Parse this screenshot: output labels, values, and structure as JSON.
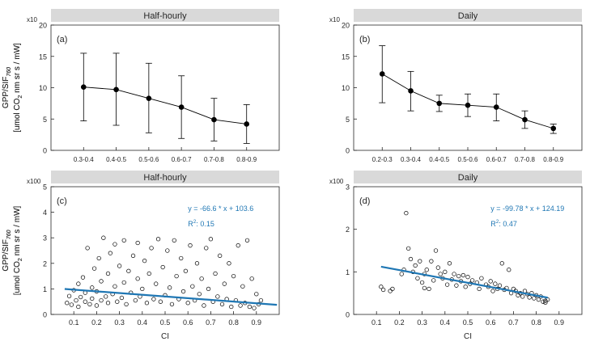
{
  "colors": {
    "strip": "#d9d9d9",
    "fit": "#1f77b4",
    "axis": "#262626",
    "grid_text": "#262626"
  },
  "chart_data": [
    {
      "id": "a",
      "type": "line",
      "strip_title": "Half-hourly",
      "panel_label": "(a)",
      "exponent_label": "x10",
      "ylabel_lines": [
        "GPP/SIF",
        "760",
        "[umol CO",
        "2",
        " nm sr s / mW]"
      ],
      "categories": [
        "0.3-0.4",
        "0.4-0.5",
        "0.5-0.6",
        "0.6-0.7",
        "0.7-0.8",
        "0.8-0.9"
      ],
      "y": [
        10.1,
        9.7,
        8.3,
        6.9,
        4.9,
        4.2
      ],
      "err_low": [
        4.7,
        4.0,
        2.8,
        1.9,
        1.5,
        1.1
      ],
      "err_high": [
        15.5,
        15.5,
        13.9,
        11.9,
        8.3,
        7.3
      ],
      "ylim": [
        0,
        20
      ],
      "yticks": [
        0,
        5,
        10,
        15,
        20
      ]
    },
    {
      "id": "b",
      "type": "line",
      "strip_title": "Daily",
      "panel_label": "(b)",
      "exponent_label": "x10",
      "categories": [
        "0.2-0.3",
        "0.3-0.4",
        "0.4-0.5",
        "0.5-0.6",
        "0.6-0.7",
        "0.7-0.8",
        "0.8-0.9"
      ],
      "y": [
        12.2,
        9.5,
        7.5,
        7.2,
        6.9,
        4.9,
        3.5
      ],
      "err_low": [
        7.6,
        6.3,
        6.2,
        5.4,
        4.7,
        3.5,
        2.7
      ],
      "err_high": [
        16.7,
        12.6,
        8.8,
        9.0,
        9.0,
        6.3,
        4.2
      ],
      "ylim": [
        0,
        20
      ],
      "yticks": [
        0,
        5,
        10,
        15,
        20
      ]
    },
    {
      "id": "c",
      "type": "scatter",
      "strip_title": "Half-hourly",
      "panel_label": "(c)",
      "exponent_label": "x100",
      "xlabel": "CI",
      "equation": "y = -66.6 * x + 103.6",
      "r2_prefix": "R",
      "r2_sup": "2",
      "r2_value": ": 0.15",
      "fit": {
        "slope": -66.6,
        "intercept": 103.6,
        "x_range": [
          0.06,
          0.99
        ]
      },
      "xlim": [
        0,
        1
      ],
      "xticks": [
        0.1,
        0.2,
        0.3,
        0.4,
        0.5,
        0.6,
        0.7,
        0.8,
        0.9
      ],
      "ylim": [
        0,
        5
      ],
      "yticks": [
        0,
        1,
        2,
        3,
        4,
        5
      ],
      "points": [
        [
          0.07,
          0.45
        ],
        [
          0.08,
          0.72
        ],
        [
          0.09,
          0.38
        ],
        [
          0.1,
          0.95
        ],
        [
          0.11,
          0.55
        ],
        [
          0.12,
          1.2
        ],
        [
          0.12,
          0.3
        ],
        [
          0.13,
          0.68
        ],
        [
          0.14,
          1.45
        ],
        [
          0.15,
          0.5
        ],
        [
          0.15,
          0.85
        ],
        [
          0.16,
          2.6
        ],
        [
          0.17,
          0.4
        ],
        [
          0.18,
          1.05
        ],
        [
          0.18,
          0.62
        ],
        [
          0.19,
          1.8
        ],
        [
          0.2,
          0.35
        ],
        [
          0.2,
          0.9
        ],
        [
          0.21,
          2.2
        ],
        [
          0.22,
          0.55
        ],
        [
          0.22,
          1.3
        ],
        [
          0.23,
          3.0
        ],
        [
          0.24,
          0.7
        ],
        [
          0.25,
          1.6
        ],
        [
          0.25,
          0.45
        ],
        [
          0.26,
          2.4
        ],
        [
          0.27,
          0.8
        ],
        [
          0.28,
          1.1
        ],
        [
          0.28,
          2.75
        ],
        [
          0.29,
          0.5
        ],
        [
          0.3,
          1.9
        ],
        [
          0.31,
          0.65
        ],
        [
          0.32,
          2.9
        ],
        [
          0.32,
          1.25
        ],
        [
          0.33,
          0.4
        ],
        [
          0.34,
          1.7
        ],
        [
          0.35,
          0.85
        ],
        [
          0.36,
          2.3
        ],
        [
          0.37,
          0.55
        ],
        [
          0.38,
          1.4
        ],
        [
          0.38,
          2.8
        ],
        [
          0.39,
          0.7
        ],
        [
          0.4,
          1.0
        ],
        [
          0.41,
          2.1
        ],
        [
          0.42,
          0.45
        ],
        [
          0.43,
          1.6
        ],
        [
          0.44,
          2.6
        ],
        [
          0.45,
          0.6
        ],
        [
          0.46,
          1.2
        ],
        [
          0.47,
          2.95
        ],
        [
          0.48,
          0.5
        ],
        [
          0.49,
          1.85
        ],
        [
          0.5,
          0.75
        ],
        [
          0.51,
          2.5
        ],
        [
          0.52,
          1.05
        ],
        [
          0.53,
          0.4
        ],
        [
          0.54,
          2.9
        ],
        [
          0.55,
          1.5
        ],
        [
          0.56,
          0.6
        ],
        [
          0.57,
          2.2
        ],
        [
          0.58,
          0.9
        ],
        [
          0.59,
          1.7
        ],
        [
          0.6,
          0.45
        ],
        [
          0.61,
          2.7
        ],
        [
          0.62,
          1.1
        ],
        [
          0.63,
          0.55
        ],
        [
          0.64,
          2.0
        ],
        [
          0.65,
          0.8
        ],
        [
          0.66,
          1.4
        ],
        [
          0.67,
          0.35
        ],
        [
          0.68,
          2.6
        ],
        [
          0.69,
          1.0
        ],
        [
          0.7,
          2.95
        ],
        [
          0.71,
          0.5
        ],
        [
          0.72,
          1.6
        ],
        [
          0.73,
          0.7
        ],
        [
          0.74,
          2.3
        ],
        [
          0.75,
          0.4
        ],
        [
          0.76,
          1.2
        ],
        [
          0.77,
          0.6
        ],
        [
          0.78,
          2.0
        ],
        [
          0.79,
          0.3
        ],
        [
          0.8,
          1.5
        ],
        [
          0.81,
          0.55
        ],
        [
          0.82,
          2.7
        ],
        [
          0.83,
          0.35
        ],
        [
          0.84,
          1.1
        ],
        [
          0.85,
          0.45
        ],
        [
          0.86,
          2.9
        ],
        [
          0.87,
          0.3
        ],
        [
          0.88,
          1.4
        ],
        [
          0.89,
          0.25
        ],
        [
          0.9,
          0.8
        ],
        [
          0.91,
          0.4
        ],
        [
          0.92,
          0.55
        ]
      ]
    },
    {
      "id": "d",
      "type": "scatter",
      "strip_title": "Daily",
      "panel_label": "(d)",
      "exponent_label": "x100",
      "xlabel": "CI",
      "equation": "y = -99.78 * x + 124.19",
      "r2_prefix": "R",
      "r2_sup": "2",
      "r2_value": ": 0.47",
      "fit": {
        "slope": -99.78,
        "intercept": 124.19,
        "x_range": [
          0.12,
          0.85
        ]
      },
      "xlim": [
        0,
        1
      ],
      "xticks": [
        0.1,
        0.2,
        0.3,
        0.4,
        0.5,
        0.6,
        0.7,
        0.8,
        0.9
      ],
      "ylim": [
        0,
        3
      ],
      "yticks": [
        0,
        1,
        2,
        3
      ],
      "points": [
        [
          0.12,
          0.65
        ],
        [
          0.13,
          0.58
        ],
        [
          0.16,
          0.55
        ],
        [
          0.17,
          0.6
        ],
        [
          0.21,
          0.95
        ],
        [
          0.22,
          1.05
        ],
        [
          0.23,
          2.38
        ],
        [
          0.24,
          1.55
        ],
        [
          0.25,
          1.3
        ],
        [
          0.26,
          1.0
        ],
        [
          0.27,
          1.15
        ],
        [
          0.28,
          0.85
        ],
        [
          0.29,
          1.25
        ],
        [
          0.3,
          0.75
        ],
        [
          0.31,
          0.95
        ],
        [
          0.31,
          0.62
        ],
        [
          0.32,
          1.05
        ],
        [
          0.33,
          0.6
        ],
        [
          0.34,
          1.25
        ],
        [
          0.35,
          0.8
        ],
        [
          0.36,
          1.5
        ],
        [
          0.37,
          1.1
        ],
        [
          0.38,
          0.95
        ],
        [
          0.39,
          0.85
        ],
        [
          0.4,
          1.0
        ],
        [
          0.41,
          0.7
        ],
        [
          0.42,
          1.2
        ],
        [
          0.43,
          0.82
        ],
        [
          0.44,
          0.95
        ],
        [
          0.45,
          0.68
        ],
        [
          0.46,
          0.9
        ],
        [
          0.47,
          0.78
        ],
        [
          0.48,
          0.92
        ],
        [
          0.49,
          0.65
        ],
        [
          0.5,
          0.88
        ],
        [
          0.51,
          0.72
        ],
        [
          0.52,
          0.8
        ],
        [
          0.54,
          0.75
        ],
        [
          0.55,
          0.6
        ],
        [
          0.56,
          0.85
        ],
        [
          0.58,
          0.7
        ],
        [
          0.59,
          0.65
        ],
        [
          0.6,
          0.78
        ],
        [
          0.61,
          0.55
        ],
        [
          0.62,
          0.72
        ],
        [
          0.63,
          0.6
        ],
        [
          0.64,
          0.68
        ],
        [
          0.65,
          1.2
        ],
        [
          0.66,
          0.58
        ],
        [
          0.67,
          0.62
        ],
        [
          0.68,
          1.05
        ],
        [
          0.69,
          0.5
        ],
        [
          0.7,
          0.6
        ],
        [
          0.71,
          0.55
        ],
        [
          0.72,
          0.45
        ],
        [
          0.73,
          0.5
        ],
        [
          0.74,
          0.42
        ],
        [
          0.75,
          0.55
        ],
        [
          0.76,
          0.48
        ],
        [
          0.77,
          0.4
        ],
        [
          0.78,
          0.5
        ],
        [
          0.79,
          0.38
        ],
        [
          0.8,
          0.45
        ],
        [
          0.81,
          0.35
        ],
        [
          0.82,
          0.42
        ],
        [
          0.83,
          0.3
        ],
        [
          0.84,
          0.32
        ],
        [
          0.84,
          0.28
        ],
        [
          0.85,
          0.35
        ]
      ]
    }
  ]
}
